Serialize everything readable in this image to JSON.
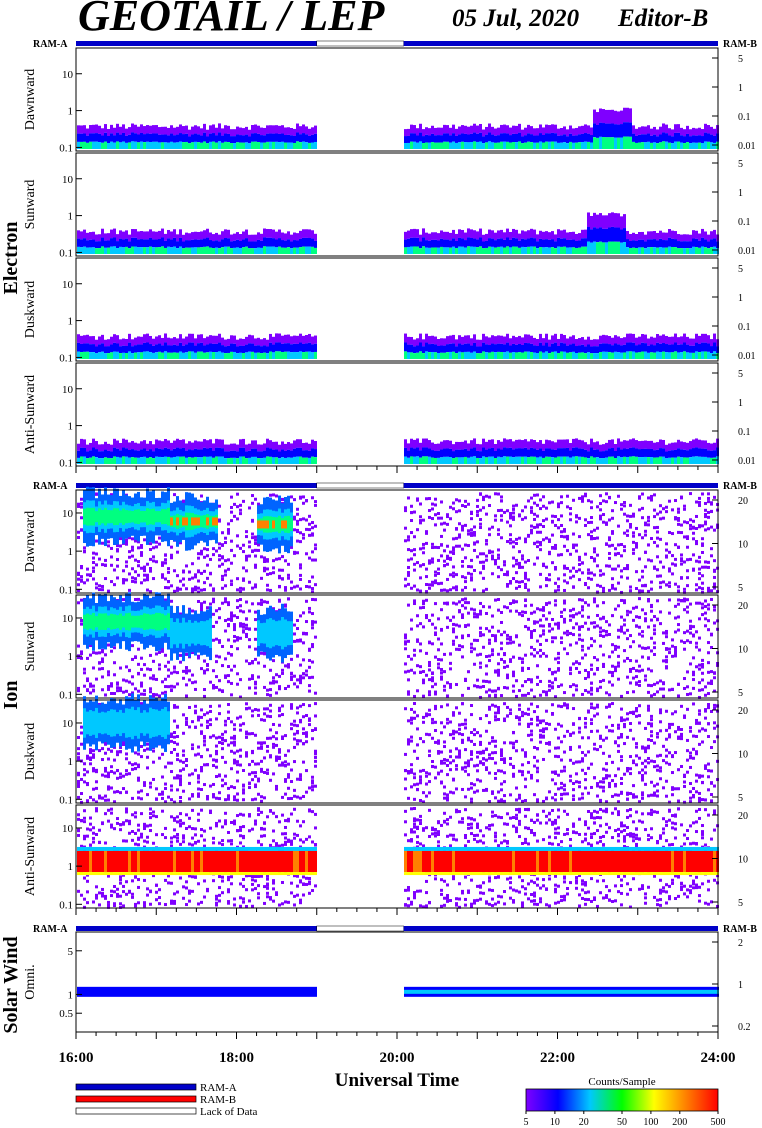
{
  "header": {
    "title": "GEOTAIL / LEP",
    "date": "05 Jul, 2020",
    "editor": "Editor-B"
  },
  "chart_data": {
    "type": "heatmap",
    "x_axis": {
      "label": "Universal Time",
      "range": [
        "16:00",
        "24:00"
      ],
      "tick_labels": [
        "16:00",
        "18:00",
        "20:00",
        "22:00",
        "24:00"
      ],
      "minor_ticks_per_hour": 4
    },
    "data_gap": {
      "start": "19:00",
      "end": "20:05"
    },
    "ram_marker": {
      "left_label": "RAM-A",
      "right_label": "RAM-B"
    },
    "groups": [
      {
        "name": "Electron",
        "panels": [
          {
            "name": "Dawnward",
            "y_ticks": [
              "10",
              "1",
              "0.1"
            ],
            "y_right_ticks": [
              "5",
              "1",
              "0.1",
              "0.01"
            ],
            "ylim": [
              0.08,
              50
            ],
            "y_scale": "log"
          },
          {
            "name": "Sunward",
            "y_ticks": [
              "10",
              "1",
              "0.1"
            ],
            "y_right_ticks": [
              "5",
              "1",
              "0.1",
              "0.01"
            ],
            "ylim": [
              0.08,
              50
            ],
            "y_scale": "log"
          },
          {
            "name": "Duskward",
            "y_ticks": [
              "10",
              "1",
              "0.1"
            ],
            "y_right_ticks": [
              "5",
              "1",
              "0.1",
              "0.01"
            ],
            "ylim": [
              0.08,
              50
            ],
            "y_scale": "log"
          },
          {
            "name": "Anti-Sunward",
            "y_ticks": [
              "10",
              "1",
              "0.1"
            ],
            "y_right_ticks": [
              "5",
              "1",
              "0.1",
              "0.01"
            ],
            "ylim": [
              0.08,
              50
            ],
            "y_scale": "log"
          }
        ]
      },
      {
        "name": "Ion",
        "panels": [
          {
            "name": "Dawnward",
            "y_ticks": [
              "10",
              "1",
              "0.1"
            ],
            "y_right_ticks": [
              "20",
              "10",
              "5"
            ],
            "ylim": [
              0.08,
              40
            ],
            "y_scale": "log"
          },
          {
            "name": "Sunward",
            "y_ticks": [
              "10",
              "1",
              "0.1"
            ],
            "y_right_ticks": [
              "20",
              "10",
              "5"
            ],
            "ylim": [
              0.08,
              40
            ],
            "y_scale": "log"
          },
          {
            "name": "Duskward",
            "y_ticks": [
              "10",
              "1",
              "0.1"
            ],
            "y_right_ticks": [
              "20",
              "10",
              "5"
            ],
            "ylim": [
              0.08,
              40
            ],
            "y_scale": "log"
          },
          {
            "name": "Anti-Sunward",
            "y_ticks": [
              "10",
              "1",
              "0.1"
            ],
            "y_right_ticks": [
              "20",
              "10",
              "5"
            ],
            "ylim": [
              0.08,
              40
            ],
            "y_scale": "log"
          }
        ]
      },
      {
        "name": "Solar Wind",
        "panels": [
          {
            "name": "Omni.",
            "y_ticks": [
              "5",
              "1",
              "0.5"
            ],
            "y_right_ticks": [
              "2",
              "1",
              "0.2"
            ],
            "ylim": [
              0.25,
              10
            ],
            "y_scale": "log"
          }
        ]
      }
    ],
    "features": {
      "electron_dawnward": {
        "band_center": 0.22,
        "enhancements": [
          {
            "start": "22:25",
            "end": "22:55",
            "level": 0.4
          }
        ]
      },
      "electron_sunward": {
        "band_center": 0.2,
        "enhancements": [
          {
            "start": "22:20",
            "end": "22:50",
            "level": 0.45
          }
        ]
      },
      "ion_antisunward": {
        "red_band": [
          0.7,
          2.5
        ]
      },
      "ion_blobs": [
        {
          "panel": "Dawnward",
          "start": "16:05",
          "end": "17:10",
          "y": 8,
          "intensity": "medium"
        },
        {
          "panel": "Dawnward",
          "start": "17:10",
          "end": "17:45",
          "y": 6,
          "intensity": "high"
        },
        {
          "panel": "Dawnward",
          "start": "18:15",
          "end": "18:40",
          "y": 5,
          "intensity": "high"
        },
        {
          "panel": "Sunward",
          "start": "16:05",
          "end": "17:10",
          "y": 8,
          "intensity": "medium"
        },
        {
          "panel": "Sunward",
          "start": "17:10",
          "end": "17:40",
          "y": 4,
          "intensity": "low"
        },
        {
          "panel": "Sunward",
          "start": "18:15",
          "end": "18:40",
          "y": 4,
          "intensity": "low"
        },
        {
          "panel": "Duskward",
          "start": "16:05",
          "end": "17:10",
          "y": 10,
          "intensity": "low"
        }
      ],
      "solar_wind_band": {
        "center": 1.1
      }
    },
    "legend": [
      {
        "label": "RAM-A",
        "color": "#0000c8"
      },
      {
        "label": "RAM-B",
        "color": "#ff0000"
      },
      {
        "label": "Lack of Data",
        "color": "#ffffff"
      }
    ],
    "colorbar": {
      "title": "Counts/Sample",
      "ticks": [
        "5",
        "10",
        "20",
        "50",
        "100",
        "200",
        "500"
      ],
      "scale": "log",
      "colors": [
        "#7f00ff",
        "#0000ff",
        "#00c8ff",
        "#00ff00",
        "#ffff00",
        "#ff8000",
        "#ff0000"
      ]
    }
  }
}
